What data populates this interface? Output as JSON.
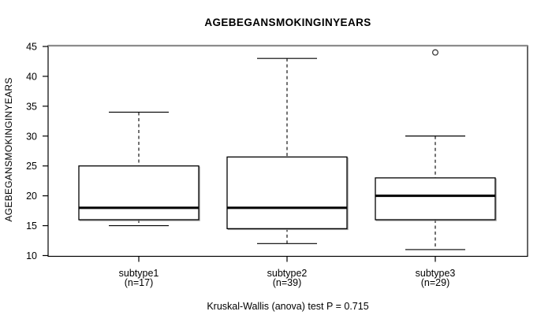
{
  "title": "AGEBEGANSMOKINGINYEARS",
  "caption": "Kruskal-Wallis (anova) test P = 0.715",
  "chart_data": {
    "type": "boxplot",
    "title": "AGEBEGANSMOKINGINYEARS",
    "xlabel": "",
    "ylabel": "AGEBEGANSMOKINGINYEARS",
    "ylim": [
      10,
      45
    ],
    "y_ticks": [
      10,
      15,
      20,
      25,
      30,
      35,
      40,
      45
    ],
    "grid": false,
    "legend": "none",
    "groups": [
      {
        "label": "subtype1",
        "sublabel": "(n=17)",
        "n": 17,
        "whisker_low": 15,
        "q1": 16,
        "median": 18,
        "q3": 25,
        "whisker_high": 34,
        "outliers": []
      },
      {
        "label": "subtype2",
        "sublabel": "(n=39)",
        "n": 39,
        "whisker_low": 12,
        "q1": 14.5,
        "median": 18,
        "q3": 26.5,
        "whisker_high": 43,
        "outliers": []
      },
      {
        "label": "subtype3",
        "sublabel": "(n=29)",
        "n": 29,
        "whisker_low": 11,
        "q1": 16,
        "median": 20,
        "q3": 23,
        "whisker_high": 30,
        "outliers": [
          44
        ]
      }
    ],
    "annotation": "Kruskal-Wallis (anova) test P = 0.715",
    "colors": {
      "line": "#000000",
      "box_fill": "#ffffff",
      "box_shadow": "#9a9a9a",
      "top_border": "#8c8c8c",
      "outlier_stroke": "#3c3c3c",
      "background": "#ffffff"
    }
  }
}
